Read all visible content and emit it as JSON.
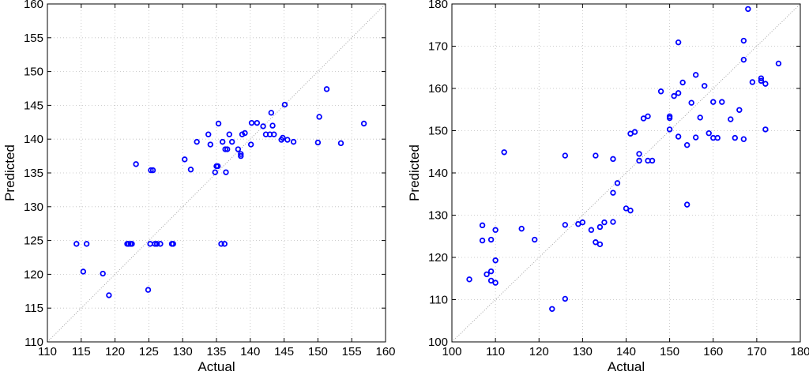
{
  "chart_data": [
    {
      "type": "scatter",
      "xlabel": "Actual",
      "ylabel": "Predicted",
      "xlim": [
        110,
        160
      ],
      "ylim": [
        110,
        160
      ],
      "xticks": [
        "110",
        "115",
        "120",
        "125",
        "130",
        "135",
        "140",
        "145",
        "150",
        "155",
        "160"
      ],
      "yticks": [
        "110",
        "115",
        "120",
        "125",
        "130",
        "135",
        "140",
        "145",
        "150",
        "155",
        "160"
      ],
      "grid": true,
      "reference_line": "y = x (dotted)",
      "marker_color": "#0000ff",
      "points": [
        [
          114.3,
          124.5
        ],
        [
          115.3,
          120.4
        ],
        [
          115.8,
          124.5
        ],
        [
          118.2,
          120.1
        ],
        [
          119.1,
          116.9
        ],
        [
          121.8,
          124.5
        ],
        [
          122.0,
          124.5
        ],
        [
          122.3,
          124.5
        ],
        [
          122.5,
          124.5
        ],
        [
          123.1,
          136.3
        ],
        [
          124.9,
          117.7
        ],
        [
          125.2,
          124.5
        ],
        [
          125.3,
          135.4
        ],
        [
          125.6,
          135.4
        ],
        [
          125.9,
          124.5
        ],
        [
          126.2,
          124.5
        ],
        [
          126.7,
          124.5
        ],
        [
          128.4,
          124.5
        ],
        [
          128.6,
          124.5
        ],
        [
          130.3,
          137.0
        ],
        [
          131.2,
          135.5
        ],
        [
          132.1,
          139.6
        ],
        [
          133.8,
          140.7
        ],
        [
          134.1,
          139.2
        ],
        [
          134.8,
          135.1
        ],
        [
          135.0,
          136.0
        ],
        [
          135.2,
          136.0
        ],
        [
          135.3,
          142.3
        ],
        [
          135.7,
          124.5
        ],
        [
          135.9,
          139.6
        ],
        [
          136.2,
          124.5
        ],
        [
          136.3,
          138.5
        ],
        [
          136.4,
          135.1
        ],
        [
          136.6,
          138.5
        ],
        [
          136.9,
          140.7
        ],
        [
          137.3,
          139.6
        ],
        [
          138.2,
          138.5
        ],
        [
          138.6,
          137.5
        ],
        [
          138.6,
          137.8
        ],
        [
          138.8,
          140.7
        ],
        [
          139.2,
          140.9
        ],
        [
          140.1,
          139.2
        ],
        [
          140.2,
          142.4
        ],
        [
          141.0,
          142.4
        ],
        [
          141.9,
          141.9
        ],
        [
          142.3,
          140.7
        ],
        [
          142.9,
          140.7
        ],
        [
          143.1,
          143.9
        ],
        [
          143.3,
          142.0
        ],
        [
          143.5,
          140.7
        ],
        [
          144.6,
          139.9
        ],
        [
          144.8,
          140.2
        ],
        [
          145.1,
          145.1
        ],
        [
          145.5,
          139.9
        ],
        [
          146.4,
          139.6
        ],
        [
          150.0,
          139.5
        ],
        [
          150.2,
          143.3
        ],
        [
          151.3,
          147.4
        ],
        [
          153.4,
          139.4
        ],
        [
          156.8,
          142.3
        ]
      ]
    },
    {
      "type": "scatter",
      "xlabel": "Actual",
      "ylabel": "Predicted",
      "xlim": [
        100,
        180
      ],
      "ylim": [
        100,
        180
      ],
      "xticks": [
        "100",
        "110",
        "120",
        "130",
        "140",
        "150",
        "160",
        "170",
        "180"
      ],
      "yticks": [
        "100",
        "110",
        "120",
        "130",
        "140",
        "150",
        "160",
        "170",
        "180"
      ],
      "grid": true,
      "reference_line": "y = x (dotted)",
      "marker_color": "#0000ff",
      "points": [
        [
          104,
          114.8
        ],
        [
          107,
          127.6
        ],
        [
          107,
          124.0
        ],
        [
          108,
          116.0
        ],
        [
          109,
          124.2
        ],
        [
          109,
          116.7
        ],
        [
          109,
          114.5
        ],
        [
          110,
          126.5
        ],
        [
          110,
          119.3
        ],
        [
          110,
          114.0
        ],
        [
          112,
          144.9
        ],
        [
          116,
          126.8
        ],
        [
          119,
          124.2
        ],
        [
          123,
          107.8
        ],
        [
          126,
          144.1
        ],
        [
          126,
          127.7
        ],
        [
          126,
          110.2
        ],
        [
          129,
          127.9
        ],
        [
          130,
          128.3
        ],
        [
          132,
          126.5
        ],
        [
          133,
          144.1
        ],
        [
          133,
          123.6
        ],
        [
          134,
          127.2
        ],
        [
          134,
          123.1
        ],
        [
          135,
          128.3
        ],
        [
          137,
          143.3
        ],
        [
          137,
          135.3
        ],
        [
          137,
          128.4
        ],
        [
          138,
          137.6
        ],
        [
          140,
          131.6
        ],
        [
          141,
          149.3
        ],
        [
          141,
          131.1
        ],
        [
          142,
          149.7
        ],
        [
          143,
          144.5
        ],
        [
          143,
          142.9
        ],
        [
          144,
          152.9
        ],
        [
          145,
          153.4
        ],
        [
          145,
          142.9
        ],
        [
          146,
          142.9
        ],
        [
          148,
          159.3
        ],
        [
          150,
          153.4
        ],
        [
          150,
          153.0
        ],
        [
          150,
          150.3
        ],
        [
          151,
          158.2
        ],
        [
          152,
          170.9
        ],
        [
          152,
          158.9
        ],
        [
          152,
          148.6
        ],
        [
          153,
          161.4
        ],
        [
          154,
          146.6
        ],
        [
          154,
          132.5
        ],
        [
          155,
          156.6
        ],
        [
          156,
          163.2
        ],
        [
          156,
          148.4
        ],
        [
          157,
          153.1
        ],
        [
          158,
          160.6
        ],
        [
          159,
          149.4
        ],
        [
          160,
          156.8
        ],
        [
          160,
          148.3
        ],
        [
          161,
          148.3
        ],
        [
          162,
          156.8
        ],
        [
          164,
          152.7
        ],
        [
          165,
          148.3
        ],
        [
          166,
          154.9
        ],
        [
          167,
          171.3
        ],
        [
          167,
          166.8
        ],
        [
          167,
          148.0
        ],
        [
          168,
          178.8
        ],
        [
          169,
          161.5
        ],
        [
          171,
          162.4
        ],
        [
          171,
          161.8
        ],
        [
          172,
          161.1
        ],
        [
          172,
          150.3
        ],
        [
          175,
          165.9
        ]
      ]
    }
  ]
}
